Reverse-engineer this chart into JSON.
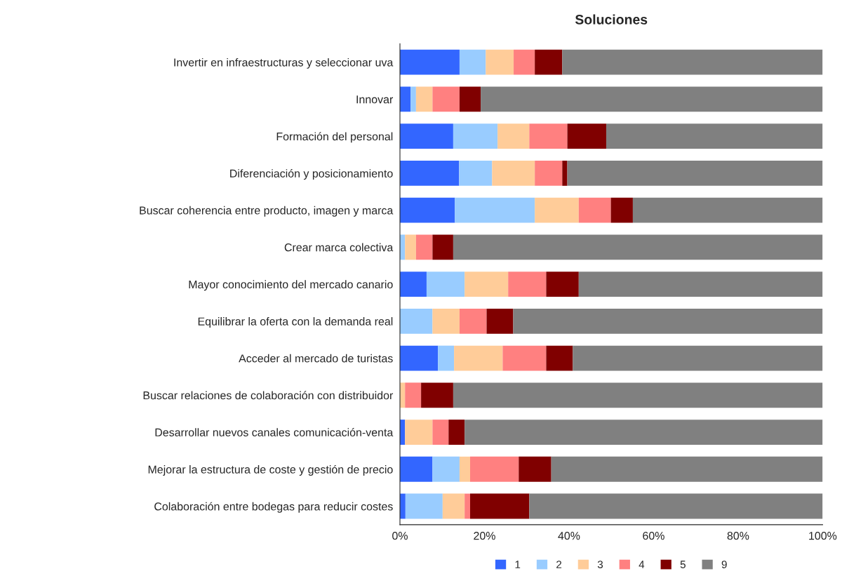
{
  "chart_data": {
    "type": "bar",
    "orientation": "horizontal",
    "stacked": true,
    "title": "Soluciones",
    "categories": [
      "Invertir en infraestructuras y seleccionar uva",
      "Innovar",
      "Formación del personal",
      "Diferenciación y posicionamiento",
      "Buscar coherencia entre producto, imagen y marca",
      "Crear marca colectiva",
      "Mayor conocimiento del mercado canario",
      "Equilibrar la oferta con la demanda real",
      "Acceder al mercado de turistas",
      "Buscar relaciones de colaboración con distribuidor",
      "Desarrollar nuevos canales comunicación-venta",
      "Mejorar la estructura de coste y gestión de precio",
      "Colaboración entre bodegas para reducir costes"
    ],
    "series": [
      {
        "name": "1",
        "color": "#3366ff",
        "values": [
          14.1,
          2.5,
          12.6,
          14.0,
          13.0,
          0,
          6.3,
          0,
          9.0,
          0,
          1.2,
          7.7,
          1.3
        ]
      },
      {
        "name": "2",
        "color": "#99ccff",
        "values": [
          6.2,
          1.3,
          10.5,
          7.8,
          18.9,
          1.2,
          9.0,
          7.7,
          3.8,
          0,
          0,
          6.4,
          8.8
        ]
      },
      {
        "name": "3",
        "color": "#ffcc99",
        "values": [
          6.6,
          3.9,
          7.5,
          10.1,
          10.4,
          2.6,
          10.3,
          6.4,
          11.5,
          1.2,
          6.5,
          2.5,
          5.2
        ]
      },
      {
        "name": "4",
        "color": "#ff8080",
        "values": [
          5.0,
          6.4,
          9.0,
          6.5,
          7.6,
          3.9,
          9.0,
          6.4,
          10.3,
          3.8,
          3.8,
          11.5,
          1.3
        ]
      },
      {
        "name": "5",
        "color": "#800000",
        "values": [
          6.5,
          5.0,
          9.2,
          1.2,
          5.2,
          4.9,
          7.7,
          6.3,
          6.3,
          7.6,
          3.8,
          7.7,
          14.0
        ]
      },
      {
        "name": "9",
        "color": "#808080",
        "values": [
          61.6,
          80.9,
          51.2,
          60.4,
          44.9,
          87.4,
          57.7,
          73.2,
          59.1,
          87.4,
          84.7,
          64.2,
          69.4
        ]
      }
    ],
    "xlim": [
      0,
      100
    ],
    "xticks": [
      {
        "value": 0,
        "label": "0%"
      },
      {
        "value": 20,
        "label": "20%"
      },
      {
        "value": 40,
        "label": "40%"
      },
      {
        "value": 60,
        "label": "60%"
      },
      {
        "value": 80,
        "label": "80%"
      },
      {
        "value": 100,
        "label": "100%"
      }
    ],
    "grid": false,
    "legend": "bottom"
  }
}
